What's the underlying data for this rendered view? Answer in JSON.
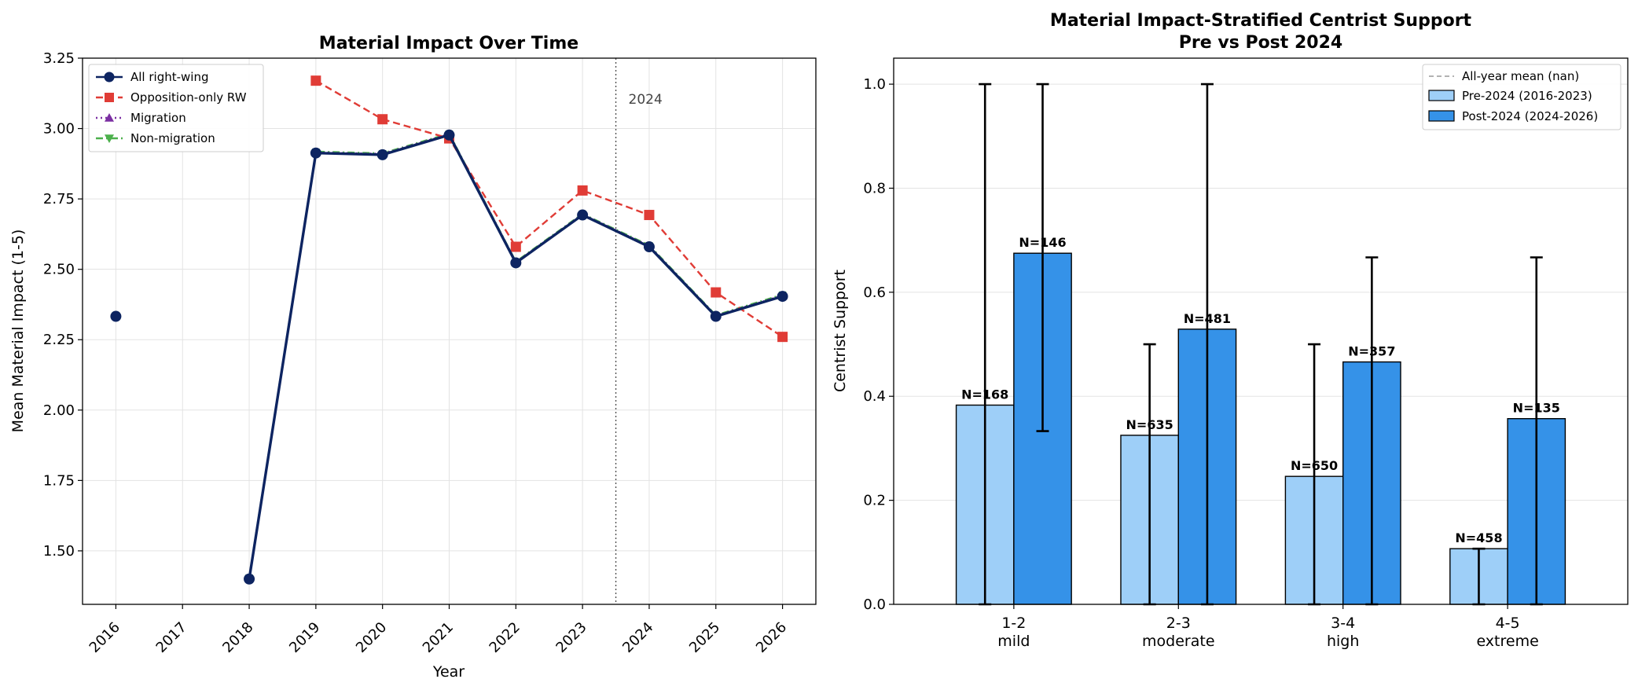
{
  "chart_data": [
    {
      "type": "line",
      "title": "Material Impact Over Time",
      "xlabel": "Year",
      "ylabel": "Mean Material Impact (1-5)",
      "x": [
        2016,
        2017,
        2018,
        2019,
        2020,
        2021,
        2022,
        2023,
        2024,
        2025,
        2026
      ],
      "xticks": [
        "2016",
        "2017",
        "2018",
        "2019",
        "2020",
        "2021",
        "2022",
        "2023",
        "2024",
        "2025",
        "2026"
      ],
      "xlim": [
        2015.5,
        2026.5
      ],
      "ylim": [
        1.31,
        3.25
      ],
      "yticks": [
        "1.50",
        "1.75",
        "2.00",
        "2.25",
        "2.50",
        "2.75",
        "3.00",
        "3.25"
      ],
      "grid": true,
      "legend_position": "top-left",
      "vline": {
        "x": 2023.5,
        "label": "2024"
      },
      "series": [
        {
          "name": "All right-wing",
          "color": "#0d2461",
          "style": "solid",
          "marker": "circle",
          "values": [
            2.333,
            null,
            1.4,
            2.913,
            2.907,
            2.977,
            2.523,
            2.693,
            2.58,
            2.333,
            2.404
          ]
        },
        {
          "name": "Opposition-only RW",
          "color": "#e03c36",
          "style": "dashed",
          "marker": "square",
          "values": [
            null,
            null,
            null,
            3.17,
            3.033,
            2.965,
            2.58,
            2.78,
            2.693,
            2.418,
            2.26
          ]
        },
        {
          "name": "Migration",
          "color": "#7b2fa2",
          "style": "dotted",
          "marker": "triangle-up",
          "values": [
            2.335,
            null,
            1.4,
            2.915,
            2.91,
            2.98,
            2.525,
            2.695,
            2.583,
            2.335,
            2.407
          ]
        },
        {
          "name": "Non-migration",
          "color": "#4cb04c",
          "style": "dashdot",
          "marker": "triangle-down",
          "values": [
            2.337,
            null,
            1.405,
            2.918,
            2.912,
            2.982,
            2.527,
            2.697,
            2.585,
            2.337,
            2.41
          ]
        }
      ]
    },
    {
      "type": "bar",
      "title": "Material Impact-Stratified Centrist Support",
      "subtitle": "Pre vs Post 2024",
      "xlabel": "",
      "ylabel": "Centrist Support",
      "categories": [
        "1-2\nmild",
        "2-3\nmoderate",
        "3-4\nhigh",
        "4-5\nextreme"
      ],
      "category_lines": [
        [
          "1-2",
          "mild"
        ],
        [
          "2-3",
          "moderate"
        ],
        [
          "3-4",
          "high"
        ],
        [
          "4-5",
          "extreme"
        ]
      ],
      "ylim": [
        0,
        1.05
      ],
      "yticks": [
        "0.0",
        "0.2",
        "0.4",
        "0.6",
        "0.8",
        "1.0"
      ],
      "grid": true,
      "legend_position": "top-right",
      "legend": [
        "All-year mean (nan)",
        "Pre-2024 (2016-2023)",
        "Post-2024 (2024-2026)"
      ],
      "series": [
        {
          "name": "Pre-2024 (2016-2023)",
          "color": "#9ecff8",
          "values": [
            0.383,
            0.325,
            0.246,
            0.107
          ],
          "err_low": [
            0.0,
            0.0,
            0.0,
            0.0
          ],
          "err_high": [
            1.0,
            0.5,
            0.5,
            0.107
          ],
          "labels": [
            "N=168",
            "N=635",
            "N=650",
            "N=458"
          ]
        },
        {
          "name": "Post-2024 (2024-2026)",
          "color": "#3592e8",
          "values": [
            0.675,
            0.529,
            0.466,
            0.357
          ],
          "err_low": [
            0.333,
            0.0,
            0.0,
            0.0
          ],
          "err_high": [
            1.0,
            1.0,
            0.667,
            0.667
          ],
          "labels": [
            "N=146",
            "N=481",
            "N=357",
            "N=135"
          ]
        }
      ]
    }
  ]
}
